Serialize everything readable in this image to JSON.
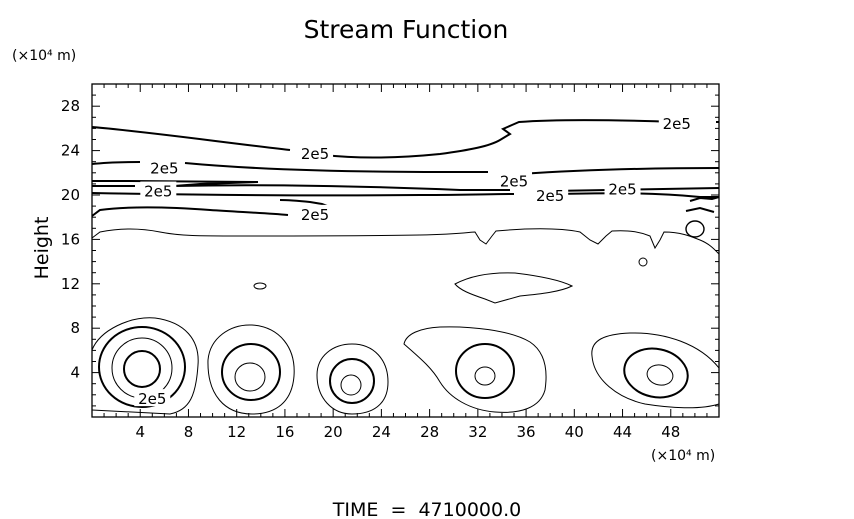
{
  "chart_data": {
    "type": "contour",
    "title": "Stream Function",
    "ylabel": "Height",
    "y_unit": "(×10⁴ m)",
    "x_unit": "(×10⁴ m)",
    "xlim": [
      0,
      52
    ],
    "ylim": [
      0,
      30
    ],
    "x_ticks": [
      4,
      8,
      12,
      16,
      20,
      24,
      28,
      32,
      36,
      40,
      44,
      48
    ],
    "y_ticks": [
      4,
      8,
      12,
      16,
      20,
      24,
      28
    ],
    "contour_labels": [
      {
        "text": "2e5",
        "x": 48.5,
        "y": 26.5
      },
      {
        "text": "2e5",
        "x": 18.5,
        "y": 23.8
      },
      {
        "text": "2e5",
        "x": 6.0,
        "y": 22.5
      },
      {
        "text": "2e5",
        "x": 35.0,
        "y": 21.3
      },
      {
        "text": "2e5",
        "x": 44.0,
        "y": 20.6
      },
      {
        "text": "2e5",
        "x": 5.5,
        "y": 20.4
      },
      {
        "text": "2e5",
        "x": 38.0,
        "y": 20.0
      },
      {
        "text": "2e5",
        "x": 18.5,
        "y": 18.3
      },
      {
        "text": "2e5",
        "x": 5.0,
        "y": 1.7
      }
    ],
    "footer": "TIME  =  4710000.0"
  }
}
